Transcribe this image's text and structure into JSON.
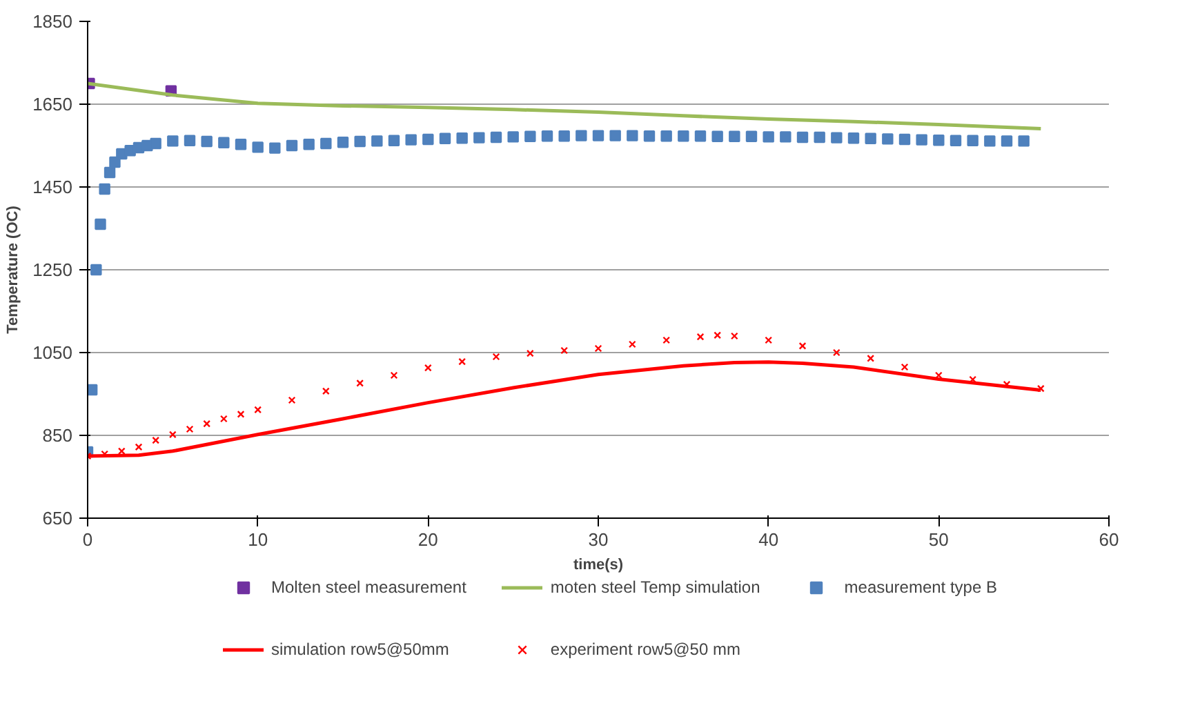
{
  "chart_data": {
    "type": "line",
    "xlabel": "time(s)",
    "ylabel": "Temperature (OC)",
    "xlim": [
      0,
      60
    ],
    "ylim": [
      650,
      1850
    ],
    "xticks": [
      0,
      10,
      20,
      30,
      40,
      50,
      60
    ],
    "yticks": [
      650,
      850,
      1050,
      1250,
      1450,
      1650,
      1850
    ],
    "grid": "y",
    "legend": "bottom",
    "series": [
      {
        "name": "Molten steel measurement",
        "type": "scatter",
        "marker": "square",
        "color": "#7030a0",
        "x": [
          0.1,
          4.9
        ],
        "values": [
          1700,
          1682
        ]
      },
      {
        "name": "moten steel Temp simulation",
        "color": "#9bbb59",
        "x": [
          0,
          5,
          10,
          15,
          20,
          25,
          30,
          35,
          40,
          45,
          50,
          56
        ],
        "values": [
          1700,
          1672,
          1652,
          1646,
          1642,
          1637,
          1631,
          1622,
          1614,
          1608,
          1601,
          1591
        ]
      },
      {
        "name": "measurement type B",
        "type": "scatter",
        "marker": "square",
        "color": "#4f81bd",
        "x": [
          0,
          0.25,
          0.5,
          0.75,
          1,
          1.3,
          1.6,
          2,
          2.5,
          3,
          3.5,
          4,
          5,
          6,
          7,
          8,
          9,
          10,
          11,
          12,
          13,
          14,
          15,
          16,
          17,
          18,
          19,
          20,
          21,
          22,
          23,
          24,
          25,
          26,
          27,
          28,
          29,
          30,
          31,
          32,
          33,
          34,
          35,
          36,
          37,
          38,
          39,
          40,
          41,
          42,
          43,
          44,
          45,
          46,
          47,
          48,
          49,
          50,
          51,
          52,
          53,
          54,
          55
        ],
        "values": [
          810,
          960,
          1250,
          1360,
          1445,
          1485,
          1510,
          1530,
          1538,
          1545,
          1550,
          1555,
          1561,
          1562,
          1560,
          1557,
          1553,
          1546,
          1544,
          1550,
          1553,
          1555,
          1558,
          1560,
          1561,
          1562,
          1564,
          1565,
          1567,
          1568,
          1569,
          1570,
          1571,
          1572,
          1573,
          1573,
          1574,
          1574,
          1574,
          1574,
          1573,
          1573,
          1573,
          1573,
          1572,
          1572,
          1572,
          1571,
          1571,
          1570,
          1570,
          1569,
          1568,
          1567,
          1566,
          1565,
          1564,
          1563,
          1562,
          1562,
          1561,
          1561,
          1561
        ]
      },
      {
        "name": "simulation row5@50mm",
        "color": "#ff0000",
        "x": [
          0,
          3,
          5,
          10,
          15,
          20,
          25,
          30,
          35,
          38,
          40,
          42,
          45,
          50,
          56
        ],
        "values": [
          800,
          802,
          812,
          852,
          890,
          929,
          965,
          997,
          1018,
          1026,
          1027,
          1024,
          1015,
          986,
          959
        ]
      },
      {
        "name": "experiment row5@50 mm",
        "type": "scatter",
        "marker": "x",
        "color": "#ff0000",
        "x": [
          0,
          1,
          2,
          3,
          4,
          5,
          6,
          7,
          8,
          9,
          10,
          12,
          14,
          16,
          18,
          20,
          22,
          24,
          26,
          28,
          30,
          32,
          34,
          36,
          37,
          38,
          40,
          42,
          44,
          46,
          48,
          50,
          52,
          54,
          56
        ],
        "values": [
          800,
          805,
          812,
          822,
          838,
          852,
          865,
          878,
          890,
          901,
          912,
          935,
          957,
          976,
          995,
          1013,
          1028,
          1040,
          1048,
          1055,
          1060,
          1070,
          1080,
          1088,
          1092,
          1090,
          1080,
          1066,
          1050,
          1036,
          1015,
          995,
          985,
          973,
          963
        ]
      }
    ]
  }
}
